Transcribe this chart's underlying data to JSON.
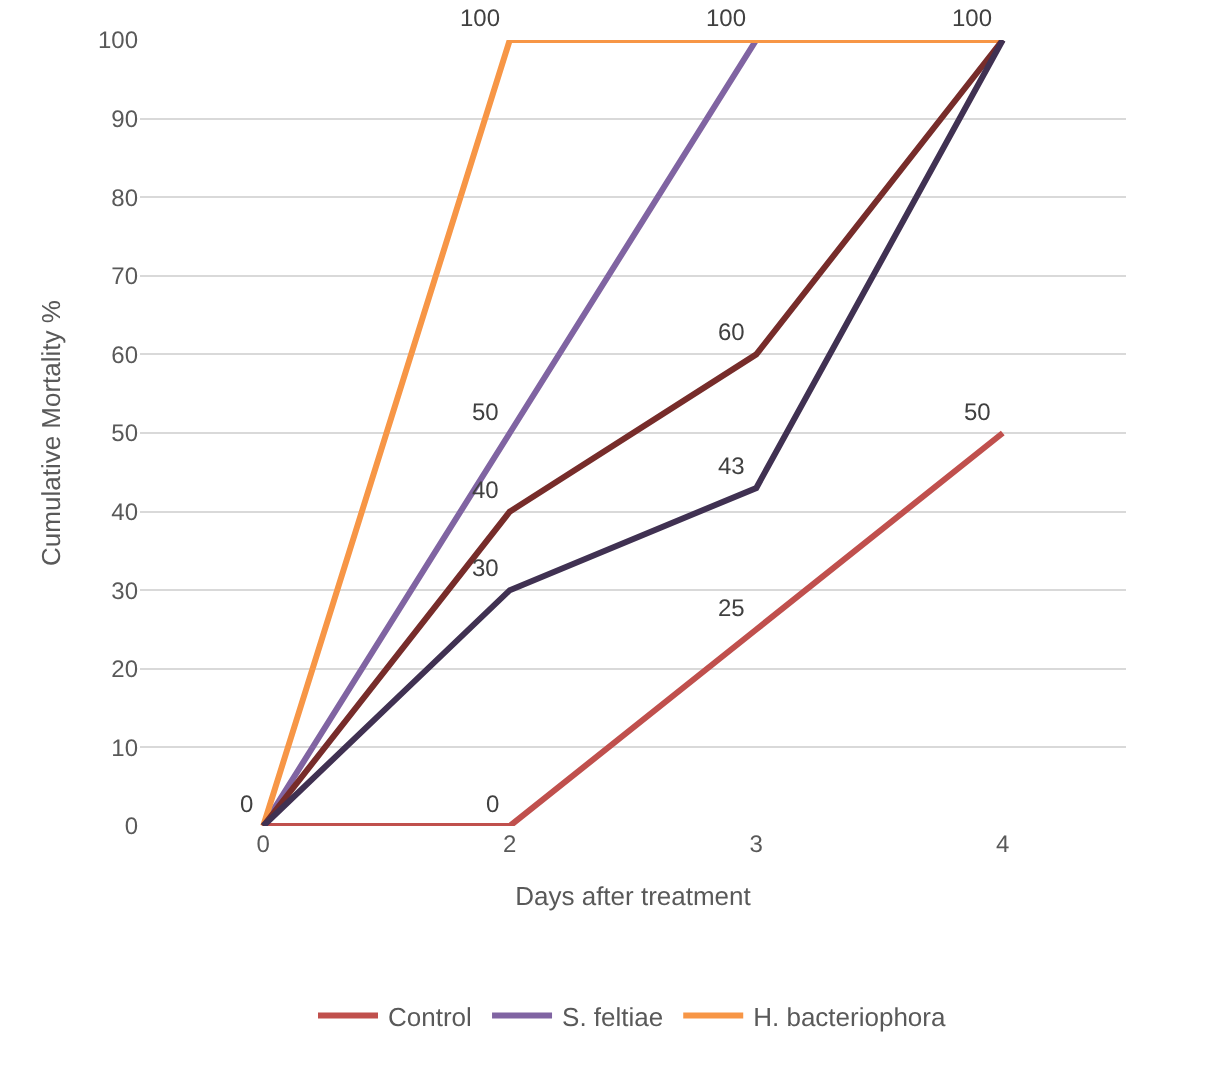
{
  "chart_data": {
    "type": "line",
    "xlabel": "Days after treatment",
    "ylabel": "Cumulative Mortality %",
    "categories": [
      "0",
      "2",
      "3",
      "4"
    ],
    "series": [
      {
        "name": "Control",
        "color": "#c0504d",
        "values": [
          0,
          0,
          25,
          50
        ],
        "value_labels": [
          "0",
          "0",
          "25",
          "50"
        ]
      },
      {
        "name": "S. feltiae",
        "color": "#8064a2",
        "values": [
          0,
          50,
          100,
          100
        ],
        "value_labels": [
          null,
          "50",
          "100",
          "100"
        ]
      },
      {
        "name": "H. bacteriophora",
        "color": "#f79646",
        "values": [
          0,
          100,
          100,
          100
        ],
        "value_labels": [
          null,
          "100",
          null,
          null
        ]
      },
      {
        "color": "#772c2a",
        "values": [
          0,
          40,
          60,
          100
        ],
        "value_labels": [
          null,
          "40",
          "60",
          null
        ]
      },
      {
        "color": "#403152",
        "values": [
          0,
          30,
          43,
          100
        ],
        "value_labels": [
          null,
          "30",
          "43",
          null
        ]
      }
    ],
    "ylim": [
      0,
      100
    ],
    "yticks": [
      0,
      10,
      20,
      30,
      40,
      50,
      60,
      70,
      80,
      90,
      100
    ],
    "grid": "y",
    "legend": "bottom",
    "marker": "none",
    "line_style": "solid"
  }
}
